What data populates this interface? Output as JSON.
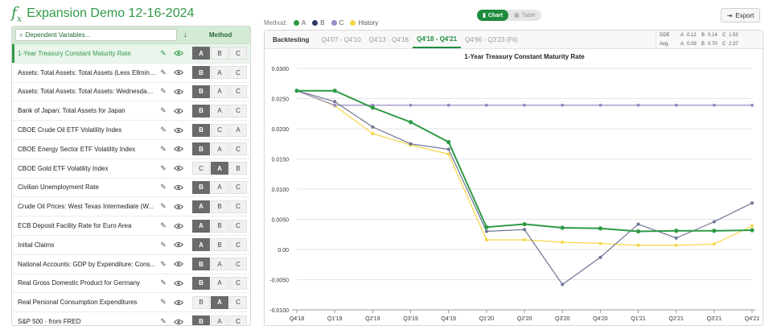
{
  "app": {
    "title": "Expansion Demo 12-16-2024",
    "icon": "fx-icon"
  },
  "search": {
    "placeholder": "Dependent Variables...",
    "icon": "search-icon"
  },
  "variables_header": {
    "method_label": "Method",
    "sort_icon": "sort-down-icon"
  },
  "variables": [
    {
      "label": "1-Year Treasury Constant Maturity Rate",
      "active": true,
      "methods": [
        "A",
        "B",
        "C"
      ],
      "selected": 0
    },
    {
      "label": "Assets: Total Assets: Total Assets (Less Ellmina...",
      "active": false,
      "methods": [
        "B",
        "A",
        "C"
      ],
      "selected": 0
    },
    {
      "label": "Assets: Total Assets: Total Assets: Wednesday ...",
      "active": false,
      "methods": [
        "B",
        "A",
        "C"
      ],
      "selected": 0
    },
    {
      "label": "Bank of Japan: Total Assets for Japan",
      "active": false,
      "methods": [
        "B",
        "A",
        "C"
      ],
      "selected": 0
    },
    {
      "label": "CBOE Crude Oil ETF Volatility Index",
      "active": false,
      "methods": [
        "B",
        "C",
        "A"
      ],
      "selected": 0
    },
    {
      "label": "CBOE Energy Sector ETF Volatility Index",
      "active": false,
      "methods": [
        "B",
        "A",
        "C"
      ],
      "selected": 0
    },
    {
      "label": "CBOE Gold ETF Volatility Index",
      "active": false,
      "methods": [
        "C",
        "A",
        "B"
      ],
      "selected": 1
    },
    {
      "label": "Civilian Unemployment Rate",
      "active": false,
      "methods": [
        "B",
        "A",
        "C"
      ],
      "selected": 0
    },
    {
      "label": "Crude Oil Prices: West Texas Intermediate (W...",
      "active": false,
      "methods": [
        "A",
        "B",
        "C"
      ],
      "selected": 0
    },
    {
      "label": "ECB Deposit Facility Rate for Euro Area",
      "active": false,
      "methods": [
        "A",
        "B",
        "C"
      ],
      "selected": 0
    },
    {
      "label": "Initial Claims",
      "active": false,
      "methods": [
        "A",
        "B",
        "C"
      ],
      "selected": 0
    },
    {
      "label": "National Accounts: GDP by Expenditure: Cons...",
      "active": false,
      "methods": [
        "B",
        "A",
        "C"
      ],
      "selected": 0
    },
    {
      "label": "Real Gross Domestic Product for Germany",
      "active": false,
      "methods": [
        "B",
        "A",
        "C"
      ],
      "selected": 0
    },
    {
      "label": "Real Personal Consumption Expenditures",
      "active": false,
      "methods": [
        "B",
        "A",
        "C"
      ],
      "selected": 1
    },
    {
      "label": "S&P 500 - from FRED",
      "active": false,
      "methods": [
        "B",
        "A",
        "C"
      ],
      "selected": 0
    }
  ],
  "legend": {
    "method_label": "Method:",
    "items": [
      {
        "label": "A",
        "color": "#2e9a46"
      },
      {
        "label": "B",
        "color": "#2c3a64"
      },
      {
        "label": "C",
        "color": "#9a8cc4"
      },
      {
        "label": "History",
        "color": "#f5d547"
      }
    ]
  },
  "view_toggle": {
    "chart": "Chart",
    "table": "Table",
    "active": "chart"
  },
  "export": {
    "label": "Export"
  },
  "tabs": {
    "title": "Backtesting",
    "items": [
      "Q4'07 - Q4'10",
      "Q4'13 - Q4'16",
      "Q4'18 - Q4'21",
      "Q4'96 - Q3'23 (Fit)"
    ],
    "active": 2
  },
  "stats": {
    "rows": [
      {
        "label": "DDE",
        "a": "0.12",
        "b": "0.14",
        "c": "1.53"
      },
      {
        "label": "Avg.",
        "a": "0.09",
        "b": "0.70",
        "c": "2.37"
      }
    ]
  },
  "chart_data": {
    "type": "line",
    "title": "1-Year Treasury Constant Maturity Rate",
    "categories": [
      "Q4'18",
      "Q1'19",
      "Q2'19",
      "Q3'19",
      "Q4'19",
      "Q1'20",
      "Q2'20",
      "Q3'20",
      "Q4'20",
      "Q1'21",
      "Q2'21",
      "Q3'21",
      "Q4'21"
    ],
    "ylim": [
      -0.01,
      0.03
    ],
    "yticks": [
      "0.0300",
      "0.0250",
      "0.0200",
      "0.0150",
      "0.0100",
      "0.0050",
      "0.00",
      "-0.0050",
      "-0.0100"
    ],
    "grid": true,
    "series": [
      {
        "name": "History",
        "color": "#f5d547",
        "values": [
          0.0263,
          0.0238,
          0.0192,
          0.0173,
          0.0158,
          0.0016,
          0.0016,
          0.0012,
          0.001,
          0.0007,
          0.0007,
          0.0009,
          0.0039
        ]
      },
      {
        "name": "C",
        "color": "#9a8cc4",
        "values": [
          0.0263,
          0.0239,
          0.0239,
          0.0239,
          0.0239,
          0.0239,
          0.0239,
          0.0239,
          0.0239,
          0.0239,
          0.0239,
          0.0239,
          0.0239
        ]
      },
      {
        "name": "B",
        "color": "#6d7593",
        "values": [
          0.0263,
          0.0245,
          0.0203,
          0.0175,
          0.0166,
          0.003,
          0.0033,
          -0.0058,
          -0.0013,
          0.0042,
          0.0019,
          0.0046,
          0.0077
        ]
      },
      {
        "name": "A",
        "color": "#2e9a46",
        "values": [
          0.0263,
          0.0263,
          0.0235,
          0.0211,
          0.0178,
          0.0037,
          0.0042,
          0.0036,
          0.0035,
          0.003,
          0.0031,
          0.0031,
          0.0032
        ]
      }
    ]
  }
}
